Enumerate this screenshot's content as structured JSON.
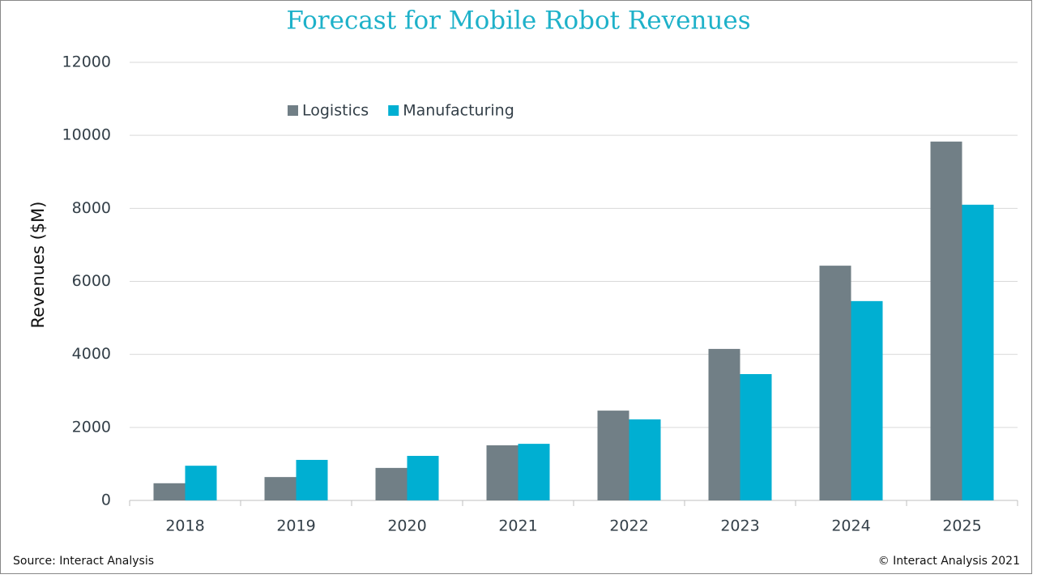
{
  "chart_data": {
    "type": "bar",
    "title": "Forecast for Mobile Robot Revenues",
    "y_label": "Revenues ($M)",
    "categories": [
      "2018",
      "2019",
      "2020",
      "2021",
      "2022",
      "2023",
      "2024",
      "2025"
    ],
    "series": [
      {
        "name": "Logistics",
        "color": "#717f86",
        "values": [
          470,
          640,
          890,
          1510,
          2460,
          4150,
          6430,
          9830
        ]
      },
      {
        "name": "Manufacturing",
        "color": "#00afd2",
        "values": [
          950,
          1110,
          1220,
          1550,
          2220,
          3460,
          5460,
          8100
        ]
      }
    ],
    "ylim": [
      0,
      12000
    ],
    "yticks": [
      0,
      2000,
      4000,
      6000,
      8000,
      10000,
      12000
    ],
    "grid": true,
    "legend": "top-left",
    "source": "Source: Interact Analysis",
    "copyright": "© Interact Analysis 2021"
  }
}
